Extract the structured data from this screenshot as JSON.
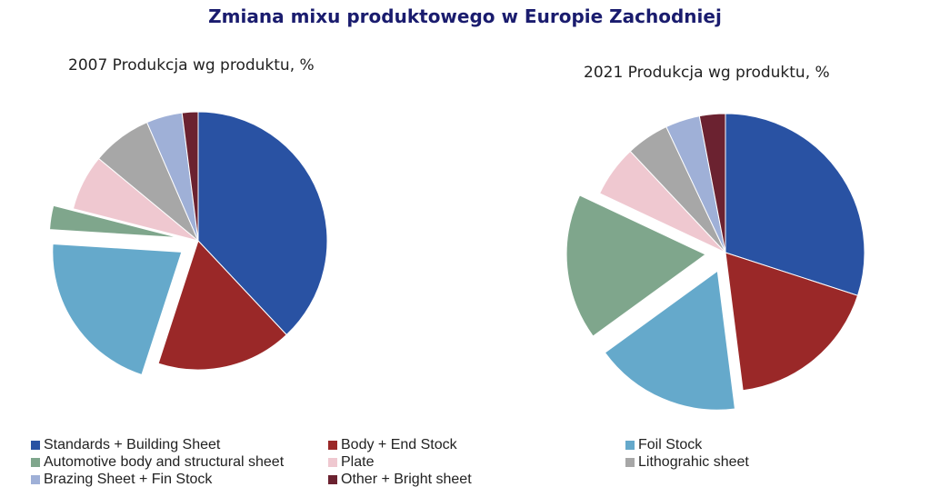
{
  "title": "Zmiana mixu produktowego w Europie Zachodniej",
  "legend": [
    {
      "label": "Standards + Building Sheet",
      "color": "#2952a3"
    },
    {
      "label": "Body +  End Stock",
      "color": "#9a2828"
    },
    {
      "label": "Foil Stock",
      "color": "#65a9cb"
    },
    {
      "label": "Automotive body and structural sheet",
      "color": "#7fa68c"
    },
    {
      "label": "Plate",
      "color": "#efc8d0"
    },
    {
      "label": "Lithograhic sheet",
      "color": "#a7a7a7"
    },
    {
      "label": "Brazing Sheet + Fin Stock",
      "color": "#9fb0d7"
    },
    {
      "label": "Other + Bright sheet",
      "color": "#6b2230"
    }
  ],
  "chart_data": [
    {
      "type": "pie",
      "title": "2007 Produkcja wg produktu, %",
      "categories": [
        "Standards + Building Sheet",
        "Body +  End Stock",
        "Foil Stock",
        "Automotive body and structural sheet",
        "Plate",
        "Lithograhic sheet",
        "Brazing Sheet + Fin Stock",
        "Other + Bright sheet"
      ],
      "values": [
        38,
        17,
        21,
        3,
        7,
        7.5,
        4.5,
        2
      ],
      "exploded": [
        "Foil Stock",
        "Automotive body and structural sheet"
      ]
    },
    {
      "type": "pie",
      "title": "2021 Produkcja wg produktu, %",
      "categories": [
        "Standards + Building Sheet",
        "Body +  End Stock",
        "Foil Stock",
        "Automotive body and structural sheet",
        "Plate",
        "Lithograhic sheet",
        "Brazing Sheet + Fin Stock",
        "Other + Bright sheet"
      ],
      "values": [
        30,
        18,
        17,
        17,
        6,
        5,
        4,
        3
      ],
      "exploded": [
        "Foil Stock",
        "Automotive body and structural sheet"
      ]
    }
  ]
}
